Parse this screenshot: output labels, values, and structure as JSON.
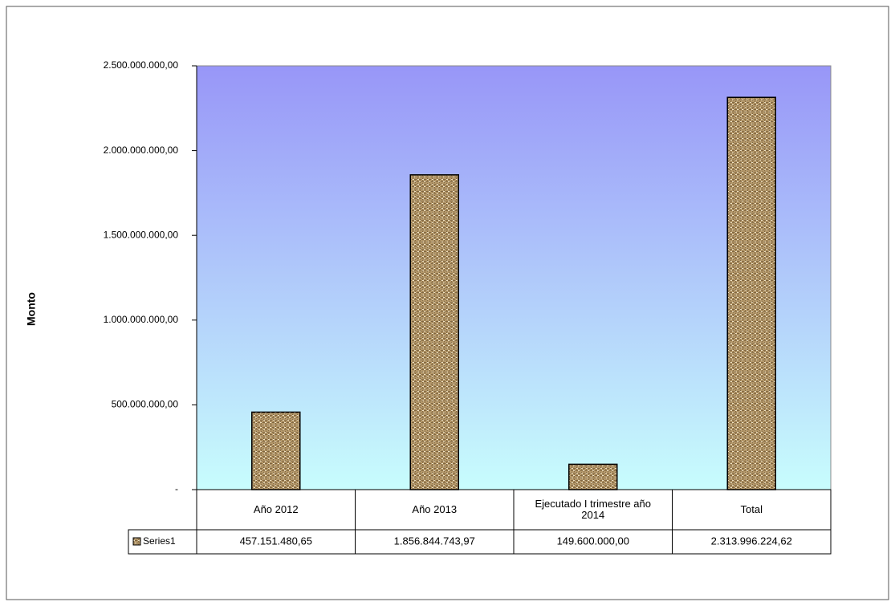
{
  "chart_data": {
    "type": "bar",
    "y_label": "Monto",
    "categories": [
      "Año 2012",
      "Año 2013",
      "Ejecutado I trimestre año 2014",
      "Total"
    ],
    "series": [
      {
        "name": "Series1",
        "color": "#b5996b",
        "values": [
          457151480.65,
          1856844743.97,
          149600000.0,
          2313996224.62
        ],
        "value_labels": [
          "457.151.480,65",
          "1.856.844.743,97",
          "149.600.000,00",
          "2.313.996.224,62"
        ]
      }
    ],
    "ylim": [
      0,
      2500000000
    ],
    "yticks": [
      {
        "value": 0,
        "label": "-"
      },
      {
        "value": 500000000,
        "label": "500.000.000,00"
      },
      {
        "value": 1000000000,
        "label": "1.000.000.000,00"
      },
      {
        "value": 1500000000,
        "label": "1.500.000.000,00"
      },
      {
        "value": 2000000000,
        "label": "2.000.000.000,00"
      },
      {
        "value": 2500000000,
        "label": "2.500.000.000,00"
      }
    ],
    "grid": false
  }
}
